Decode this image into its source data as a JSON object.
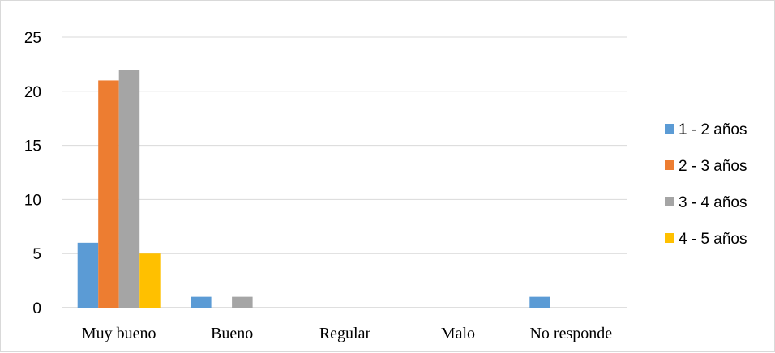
{
  "chart_data": {
    "type": "bar",
    "categories": [
      "Muy bueno",
      "Bueno",
      "Regular",
      "Malo",
      "No responde"
    ],
    "series": [
      {
        "name": "1 - 2 años",
        "color": "#5b9bd5",
        "values": [
          6,
          1,
          0,
          0,
          1
        ]
      },
      {
        "name": "2 - 3 años",
        "color": "#ed7d31",
        "values": [
          21,
          0,
          0,
          0,
          0
        ]
      },
      {
        "name": "3 - 4 años",
        "color": "#a5a5a5",
        "values": [
          22,
          1,
          0,
          0,
          0
        ]
      },
      {
        "name": "4 - 5 años",
        "color": "#ffc000",
        "values": [
          5,
          0,
          0,
          0,
          0
        ]
      }
    ],
    "ylim": [
      0,
      25
    ],
    "yticks": [
      0,
      5,
      10,
      15,
      20,
      25
    ],
    "grid": true,
    "legend_position": "right",
    "title": "",
    "xlabel": "",
    "ylabel": ""
  }
}
